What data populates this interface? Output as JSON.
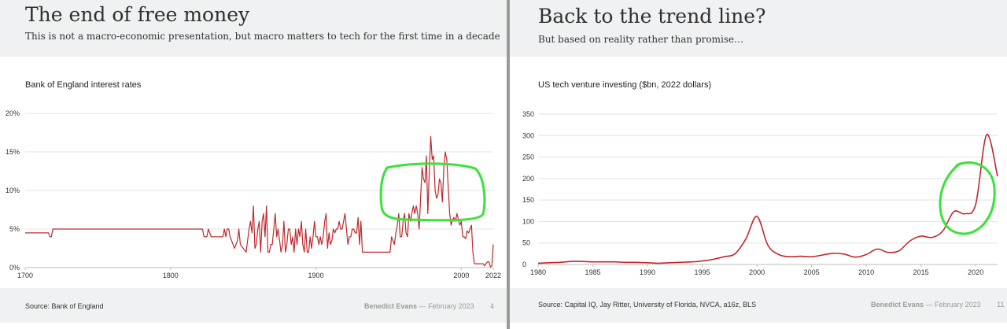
{
  "slides": [
    {
      "title": "The end of free money",
      "subtitle": "This is not a macro-economic presentation, but macro matters to tech for the first time in a decade",
      "source": "Source: Bank of England",
      "author": "Benedict Evans",
      "date": "February 2023",
      "page": "4"
    },
    {
      "title": "Back to the trend line?",
      "subtitle": "But based on reality rather than promise…",
      "source": "Source: Capital IQ, Jay Ritter, University of Florida, NVCA, a16z, BLS",
      "author": "Benedict Evans",
      "date": "February 2023",
      "page": "11"
    }
  ],
  "footer_separator": "—",
  "colors": {
    "line": "#c0282d",
    "highlight": "#3be23b",
    "grid": "#e3e3e3",
    "band": "#f0f1f2"
  },
  "chart_data": [
    {
      "type": "line",
      "title": "Bank of England interest rates",
      "xlabel": "",
      "ylabel": "",
      "xlim": [
        1700,
        2022
      ],
      "ylim": [
        0,
        20
      ],
      "x_ticks": [
        "1700",
        "1800",
        "1900",
        "2000",
        "2022"
      ],
      "y_ticks": [
        "0%",
        "5%",
        "10%",
        "15%",
        "20%"
      ],
      "grid": true,
      "series": [
        {
          "values": [
            [
              1700,
              4.5
            ],
            [
              1716,
              4.5
            ],
            [
              1717,
              4
            ],
            [
              1718,
              4
            ],
            [
              1719,
              5
            ],
            [
              1822,
              5
            ],
            [
              1823,
              4
            ],
            [
              1825,
              4
            ],
            [
              1826,
              5
            ],
            [
              1828,
              4
            ],
            [
              1836,
              4
            ],
            [
              1837,
              5
            ],
            [
              1838,
              4
            ],
            [
              1839,
              5
            ],
            [
              1840,
              5
            ],
            [
              1841,
              4
            ],
            [
              1844,
              2.5
            ],
            [
              1846,
              3.5
            ],
            [
              1847,
              5
            ],
            [
              1848,
              3
            ],
            [
              1850,
              2.5
            ],
            [
              1852,
              2
            ],
            [
              1853,
              3.5
            ],
            [
              1854,
              5
            ],
            [
              1855,
              6
            ],
            [
              1856,
              4.5
            ],
            [
              1857,
              8
            ],
            [
              1858,
              2.5
            ],
            [
              1859,
              3
            ],
            [
              1860,
              5
            ],
            [
              1861,
              6
            ],
            [
              1862,
              2
            ],
            [
              1863,
              6
            ],
            [
              1864,
              7
            ],
            [
              1865,
              4
            ],
            [
              1866,
              8
            ],
            [
              1867,
              2
            ],
            [
              1868,
              2
            ],
            [
              1869,
              3
            ],
            [
              1870,
              3
            ],
            [
              1871,
              5
            ],
            [
              1872,
              7
            ],
            [
              1873,
              4
            ],
            [
              1874,
              5
            ],
            [
              1875,
              3.5
            ],
            [
              1876,
              2
            ],
            [
              1877,
              3
            ],
            [
              1878,
              6
            ],
            [
              1879,
              2
            ],
            [
              1880,
              3
            ],
            [
              1881,
              5
            ],
            [
              1882,
              5
            ],
            [
              1883,
              3
            ],
            [
              1884,
              4
            ],
            [
              1885,
              2
            ],
            [
              1886,
              5
            ],
            [
              1887,
              3
            ],
            [
              1888,
              5
            ],
            [
              1889,
              4
            ],
            [
              1890,
              6
            ],
            [
              1891,
              3
            ],
            [
              1892,
              2
            ],
            [
              1893,
              5
            ],
            [
              1894,
              2
            ],
            [
              1895,
              2
            ],
            [
              1896,
              4
            ],
            [
              1897,
              2.5
            ],
            [
              1898,
              4
            ],
            [
              1899,
              6
            ],
            [
              1900,
              4
            ],
            [
              1901,
              4
            ],
            [
              1902,
              3
            ],
            [
              1903,
              4
            ],
            [
              1904,
              3
            ],
            [
              1905,
              4
            ],
            [
              1906,
              6
            ],
            [
              1907,
              7
            ],
            [
              1908,
              2.5
            ],
            [
              1909,
              4.5
            ],
            [
              1910,
              3
            ],
            [
              1911,
              3.5
            ],
            [
              1912,
              5
            ],
            [
              1913,
              4.5
            ],
            [
              1914,
              5
            ],
            [
              1915,
              5
            ],
            [
              1916,
              6
            ],
            [
              1917,
              5
            ],
            [
              1918,
              5
            ],
            [
              1919,
              6
            ],
            [
              1920,
              7
            ],
            [
              1921,
              5
            ],
            [
              1922,
              3
            ],
            [
              1923,
              4
            ],
            [
              1924,
              4
            ],
            [
              1925,
              5
            ],
            [
              1926,
              5
            ],
            [
              1927,
              4.5
            ],
            [
              1928,
              4.5
            ],
            [
              1929,
              6.5
            ],
            [
              1930,
              3
            ],
            [
              1931,
              6
            ],
            [
              1932,
              2
            ],
            [
              1951,
              2
            ],
            [
              1952,
              4
            ],
            [
              1953,
              3.5
            ],
            [
              1954,
              3
            ],
            [
              1955,
              4.5
            ],
            [
              1956,
              5.5
            ],
            [
              1957,
              7
            ],
            [
              1958,
              4
            ],
            [
              1959,
              4
            ],
            [
              1960,
              6
            ],
            [
              1961,
              7
            ],
            [
              1962,
              4.5
            ],
            [
              1963,
              4
            ],
            [
              1964,
              7
            ],
            [
              1965,
              6
            ],
            [
              1966,
              7
            ],
            [
              1967,
              8
            ],
            [
              1968,
              7
            ],
            [
              1969,
              8
            ],
            [
              1970,
              7
            ],
            [
              1971,
              5
            ],
            [
              1972,
              9
            ],
            [
              1973,
              13
            ],
            [
              1974,
              11.5
            ],
            [
              1975,
              11
            ],
            [
              1976,
              14.5
            ],
            [
              1977,
              7
            ],
            [
              1978,
              12.5
            ],
            [
              1979,
              17
            ],
            [
              1980,
              14
            ],
            [
              1981,
              14.5
            ],
            [
              1982,
              10
            ],
            [
              1983,
              9
            ],
            [
              1984,
              9.5
            ],
            [
              1985,
              11.5
            ],
            [
              1986,
              11
            ],
            [
              1987,
              8.5
            ],
            [
              1988,
              13
            ],
            [
              1989,
              15
            ],
            [
              1990,
              14
            ],
            [
              1991,
              10.5
            ],
            [
              1992,
              7
            ],
            [
              1993,
              5.5
            ],
            [
              1994,
              6.25
            ],
            [
              1995,
              6.5
            ],
            [
              1996,
              6
            ],
            [
              1997,
              7
            ],
            [
              1998,
              6.25
            ],
            [
              1999,
              5.5
            ],
            [
              2000,
              6
            ],
            [
              2001,
              4
            ],
            [
              2002,
              4
            ],
            [
              2003,
              3.75
            ],
            [
              2004,
              4.75
            ],
            [
              2005,
              4.5
            ],
            [
              2006,
              5
            ],
            [
              2007,
              5.5
            ],
            [
              2008,
              2
            ],
            [
              2009,
              0.5
            ],
            [
              2015,
              0.5
            ],
            [
              2016,
              0.25
            ],
            [
              2017,
              0.5
            ],
            [
              2018,
              0.75
            ],
            [
              2019,
              0.75
            ],
            [
              2020,
              0.1
            ],
            [
              2021,
              0.25
            ],
            [
              2022,
              3
            ]
          ]
        }
      ]
    },
    {
      "type": "line",
      "title": "US tech venture investing ($bn, 2022 dollars)",
      "xlabel": "",
      "ylabel": "",
      "xlim": [
        1980,
        2022
      ],
      "ylim": [
        0,
        350
      ],
      "x_ticks": [
        "1980",
        "1985",
        "1990",
        "1995",
        "2000",
        "2005",
        "2010",
        "2015",
        "2020"
      ],
      "y_ticks": [
        "0",
        "50",
        "100",
        "150",
        "200",
        "250",
        "300",
        "350"
      ],
      "grid": true,
      "series": [
        {
          "values": [
            [
              1980,
              3
            ],
            [
              1981,
              4
            ],
            [
              1982,
              5
            ],
            [
              1983,
              7
            ],
            [
              1984,
              7
            ],
            [
              1985,
              6
            ],
            [
              1986,
              6
            ],
            [
              1987,
              6
            ],
            [
              1988,
              5
            ],
            [
              1989,
              5
            ],
            [
              1990,
              4
            ],
            [
              1991,
              3
            ],
            [
              1992,
              4
            ],
            [
              1993,
              5
            ],
            [
              1994,
              6
            ],
            [
              1995,
              8
            ],
            [
              1996,
              12
            ],
            [
              1997,
              18
            ],
            [
              1998,
              25
            ],
            [
              1999,
              60
            ],
            [
              2000,
              112
            ],
            [
              2001,
              45
            ],
            [
              2002,
              23
            ],
            [
              2003,
              18
            ],
            [
              2004,
              19
            ],
            [
              2005,
              18
            ],
            [
              2006,
              22
            ],
            [
              2007,
              26
            ],
            [
              2008,
              24
            ],
            [
              2009,
              17
            ],
            [
              2010,
              23
            ],
            [
              2011,
              36
            ],
            [
              2012,
              28
            ],
            [
              2013,
              32
            ],
            [
              2014,
              55
            ],
            [
              2015,
              66
            ],
            [
              2016,
              63
            ],
            [
              2017,
              78
            ],
            [
              2018,
              123
            ],
            [
              2019,
              118
            ],
            [
              2020,
              140
            ],
            [
              2021,
              302
            ],
            [
              2022,
              205
            ]
          ]
        }
      ]
    }
  ]
}
